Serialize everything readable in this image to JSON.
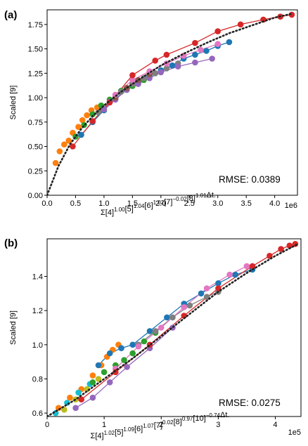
{
  "chart_data": [
    {
      "type": "scatter",
      "panel_label": "(a)",
      "ylabel": "Scaled [9]",
      "xlabel": {
        "parts": [
          {
            "t": "Σ[4]",
            "s": "1.00"
          },
          {
            "t": "[5]",
            "s": "1.04"
          },
          {
            "t": "[6]",
            "s": "1.02"
          },
          {
            "t": "[7]",
            "s": "−0.02"
          },
          {
            "t": "[8]",
            "s": "1.01"
          },
          {
            "t": "Δt.",
            "s": ""
          }
        ]
      },
      "x_offset_label": "1e6",
      "xlim": [
        0,
        4.4
      ],
      "ylim": [
        0,
        1.9
      ],
      "xticks": [
        0.0,
        0.5,
        1.0,
        1.5,
        2.0,
        2.5,
        3.0,
        3.5,
        4.0
      ],
      "xtick_labels": [
        "0.0",
        "0.5",
        "1.0",
        "1.5",
        "2.0",
        "2.5",
        "3.0",
        "3.5",
        "4.0"
      ],
      "yticks": [
        0.0,
        0.25,
        0.5,
        0.75,
        1.0,
        1.25,
        1.5,
        1.75
      ],
      "ytick_labels": [
        "0.00",
        "0.25",
        "0.50",
        "0.75",
        "1.00",
        "1.25",
        "1.50",
        "1.75"
      ],
      "annotation": "RMSE: 0.0389",
      "fit_line": {
        "style": "dotted",
        "color": "#222222",
        "x": [
          0,
          0.2,
          0.4,
          0.6,
          0.8,
          1.0,
          1.3,
          1.6,
          2.0,
          2.4,
          2.8,
          3.2,
          3.6,
          4.0,
          4.3
        ],
        "y": [
          0,
          0.3,
          0.52,
          0.68,
          0.81,
          0.92,
          1.06,
          1.18,
          1.33,
          1.45,
          1.56,
          1.66,
          1.74,
          1.82,
          1.86
        ]
      },
      "series": [
        {
          "color": "#ff7f0e",
          "line": false,
          "x": [
            0.15,
            0.22,
            0.3,
            0.38,
            0.45,
            0.55,
            0.62,
            0.7,
            0.78,
            0.88,
            0.98
          ],
          "y": [
            0.33,
            0.45,
            0.52,
            0.56,
            0.64,
            0.7,
            0.77,
            0.82,
            0.87,
            0.9,
            0.88
          ]
        },
        {
          "color": "#2ca02c",
          "line": false,
          "x": [
            0.5,
            0.65,
            0.8,
            0.95,
            1.1,
            1.3,
            1.5,
            1.7,
            1.9
          ],
          "y": [
            0.6,
            0.72,
            0.83,
            0.92,
            0.98,
            1.07,
            1.12,
            1.18,
            1.25
          ]
        },
        {
          "color": "#1f77b4",
          "line": true,
          "x": [
            0.6,
            0.8,
            1.0,
            1.2,
            1.4,
            1.6,
            1.8,
            2.0,
            2.2,
            2.4,
            2.6,
            2.8,
            3.0,
            3.2
          ],
          "y": [
            0.62,
            0.75,
            0.87,
            0.99,
            1.08,
            1.15,
            1.22,
            1.28,
            1.33,
            1.4,
            1.44,
            1.48,
            1.53,
            1.57
          ]
        },
        {
          "color": "#7f7f7f",
          "line": true,
          "x": [
            0.9,
            1.1,
            1.3,
            1.5,
            1.7,
            1.9,
            2.1,
            2.3
          ],
          "y": [
            0.85,
            0.96,
            1.06,
            1.14,
            1.2,
            1.25,
            1.3,
            1.35
          ]
        },
        {
          "color": "#9467bd",
          "line": true,
          "x": [
            1.0,
            1.2,
            1.4,
            1.6,
            1.8,
            2.0,
            2.3,
            2.6,
            2.9
          ],
          "y": [
            0.88,
            0.98,
            1.08,
            1.14,
            1.2,
            1.26,
            1.32,
            1.36,
            1.4
          ]
        },
        {
          "color": "#8c564b",
          "line": false,
          "x": [
            1.2,
            1.4,
            1.6,
            1.8
          ],
          "y": [
            1.0,
            1.1,
            1.18,
            1.24
          ]
        },
        {
          "color": "#e377c2",
          "line": true,
          "x": [
            1.2,
            1.5,
            1.8,
            2.1,
            2.4,
            2.7,
            3.0
          ],
          "y": [
            1.03,
            1.18,
            1.27,
            1.35,
            1.43,
            1.49,
            1.55
          ]
        },
        {
          "color": "#d62728",
          "line": true,
          "x": [
            0.45,
            0.8,
            1.1,
            1.5,
            1.9,
            2.1,
            2.6,
            3.0,
            3.4,
            3.8,
            4.1,
            4.3
          ],
          "y": [
            0.5,
            0.76,
            0.95,
            1.23,
            1.38,
            1.44,
            1.56,
            1.68,
            1.75,
            1.8,
            1.83,
            1.85
          ]
        }
      ]
    },
    {
      "type": "scatter",
      "panel_label": "(b)",
      "ylabel": "Scaled [9]",
      "xlabel": {
        "parts": [
          {
            "t": "Σ[4]",
            "s": "1.02"
          },
          {
            "t": "[5]",
            "s": "1.09"
          },
          {
            "t": "[6]",
            "s": "1.07"
          },
          {
            "t": "[7]",
            "s": "0.02"
          },
          {
            "t": "[8]",
            "s": "0.97"
          },
          {
            "t": "[10]",
            "s": "−0.74"
          },
          {
            "t": "Δt.",
            "s": ""
          }
        ]
      },
      "x_offset_label": "1e5",
      "xlim": [
        0,
        4.45
      ],
      "ylim": [
        0.58,
        1.62
      ],
      "xticks": [
        0,
        1,
        2,
        3,
        4
      ],
      "xtick_labels": [
        "0",
        "1",
        "2",
        "3",
        "4"
      ],
      "yticks": [
        0.6,
        0.8,
        1.0,
        1.2,
        1.4
      ],
      "ytick_labels": [
        "0.6",
        "0.8",
        "1.0",
        "1.2",
        "1.4"
      ],
      "annotation": "RMSE: 0.0275",
      "fit_line": {
        "style": "dotted",
        "color": "#222222",
        "x": [
          0,
          0.5,
          1.0,
          1.5,
          2.0,
          2.5,
          3.0,
          3.5,
          4.0,
          4.4
        ],
        "y": [
          0.58,
          0.68,
          0.8,
          0.92,
          1.05,
          1.18,
          1.31,
          1.42,
          1.52,
          1.59
        ]
      },
      "series": [
        {
          "color": "#ff7f0e",
          "line": false,
          "x": [
            0.2,
            0.4,
            0.6,
            0.8,
            0.95,
            1.05,
            1.15,
            1.25
          ],
          "y": [
            0.63,
            0.69,
            0.74,
            0.82,
            0.88,
            0.93,
            0.97,
            1.0
          ]
        },
        {
          "color": "#17becf",
          "line": false,
          "x": [
            0.15,
            0.35,
            0.55,
            0.75
          ],
          "y": [
            0.6,
            0.66,
            0.72,
            0.77
          ]
        },
        {
          "color": "#bcbd22",
          "line": false,
          "x": [
            0.3,
            0.5,
            0.7,
            0.9
          ],
          "y": [
            0.62,
            0.68,
            0.74,
            0.8
          ]
        },
        {
          "color": "#2ca02c",
          "line": false,
          "x": [
            0.8,
            1.0,
            1.2,
            1.35,
            1.5,
            1.7,
            1.9
          ],
          "y": [
            0.78,
            0.84,
            0.88,
            0.91,
            0.95,
            1.02,
            1.07
          ]
        },
        {
          "color": "#1f77b4",
          "line": true,
          "x": [
            0.9,
            1.1,
            1.3,
            1.5,
            1.8,
            2.1,
            2.4,
            2.7,
            3.0,
            3.3,
            3.6
          ],
          "y": [
            0.88,
            0.95,
            0.98,
            1.0,
            1.08,
            1.16,
            1.24,
            1.3,
            1.36,
            1.41,
            1.44
          ]
        },
        {
          "color": "#7f7f7f",
          "line": true,
          "x": [
            1.6,
            1.9,
            2.2,
            2.5,
            2.8,
            3.0
          ],
          "y": [
            1.0,
            1.08,
            1.16,
            1.23,
            1.28,
            1.31
          ]
        },
        {
          "color": "#9467bd",
          "line": true,
          "x": [
            0.5,
            0.8,
            1.1,
            1.4,
            1.8,
            2.2
          ],
          "y": [
            0.63,
            0.69,
            0.78,
            0.87,
            0.98,
            1.1
          ]
        },
        {
          "color": "#e377c2",
          "line": true,
          "x": [
            1.2,
            1.6,
            2.0,
            2.4,
            2.8,
            3.2,
            3.5
          ],
          "y": [
            0.86,
            0.99,
            1.1,
            1.22,
            1.33,
            1.41,
            1.46
          ]
        },
        {
          "color": "#d62728",
          "line": true,
          "x": [
            0.6,
            1.2,
            1.8,
            2.4,
            3.0,
            3.6,
            3.9,
            4.1,
            4.25,
            4.35
          ],
          "y": [
            0.68,
            0.84,
            1.0,
            1.17,
            1.33,
            1.46,
            1.52,
            1.56,
            1.58,
            1.59
          ]
        }
      ]
    }
  ]
}
